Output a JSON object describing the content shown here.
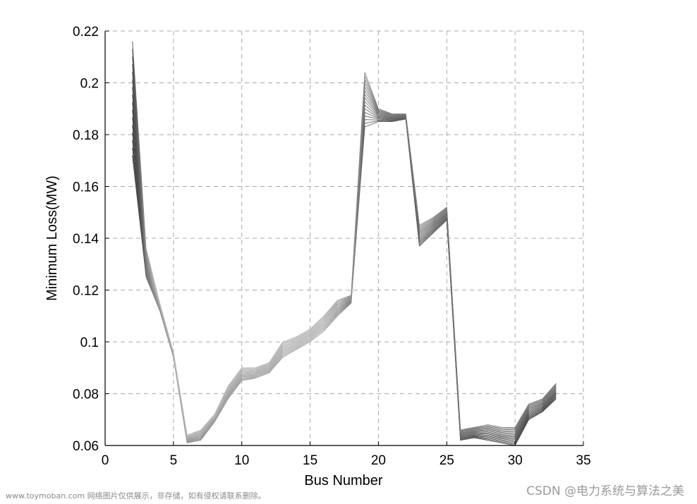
{
  "chart_data": {
    "type": "line",
    "xlabel": "Bus Number",
    "ylabel": "Minimum Loss(MW)",
    "xlim": [
      0,
      35
    ],
    "ylim": [
      0.06,
      0.22
    ],
    "xticks": [
      "0",
      "5",
      "10",
      "15",
      "20",
      "25",
      "30",
      "35"
    ],
    "yticks": [
      "0.06",
      "0.08",
      "0.1",
      "0.12",
      "0.14",
      "0.16",
      "0.18",
      "0.2",
      "0.22"
    ],
    "grid": true,
    "grid_style": "dashed",
    "x": [
      2,
      3,
      4,
      5,
      6,
      7,
      8,
      9,
      10,
      11,
      12,
      13,
      14,
      15,
      16,
      17,
      18,
      19,
      20,
      21,
      22,
      23,
      24,
      25,
      26,
      27,
      28,
      29,
      30,
      31,
      32,
      33
    ],
    "series_low": [
      0.172,
      0.125,
      0.112,
      0.094,
      0.061,
      0.062,
      0.069,
      0.078,
      0.085,
      0.086,
      0.088,
      0.094,
      0.097,
      0.1,
      0.104,
      0.11,
      0.115,
      0.183,
      0.185,
      0.185,
      0.186,
      0.137,
      0.142,
      0.147,
      0.062,
      0.063,
      0.062,
      0.061,
      0.06,
      0.07,
      0.073,
      0.078
    ],
    "series_high": [
      0.216,
      0.136,
      0.115,
      0.096,
      0.064,
      0.066,
      0.072,
      0.083,
      0.09,
      0.09,
      0.092,
      0.1,
      0.102,
      0.105,
      0.11,
      0.116,
      0.118,
      0.204,
      0.19,
      0.188,
      0.188,
      0.145,
      0.148,
      0.152,
      0.066,
      0.067,
      0.068,
      0.067,
      0.067,
      0.076,
      0.078,
      0.084
    ],
    "series_count": 16,
    "colors": {
      "dark": "#1a1a1a",
      "light": "#d6d6d6",
      "grid": "#a8a8a8",
      "axis": "#000000"
    }
  },
  "watermark_left": "www.toymoban.com 网络图片仅供展示，非存储，如有侵权请联系删除。",
  "watermark_right": "CSDN @电力系统与算法之美"
}
